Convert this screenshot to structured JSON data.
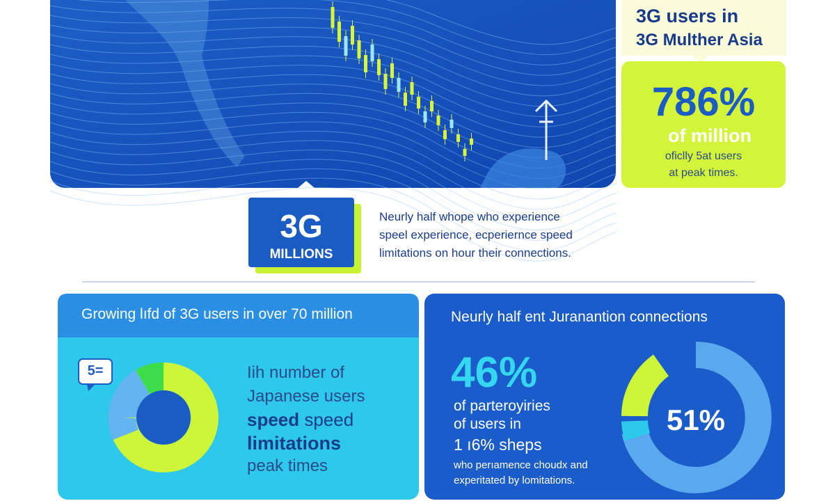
{
  "hero": {
    "callout": {
      "lines": [
        "3G users in",
        "3G Multher Asia"
      ]
    },
    "stat": {
      "value": "786%",
      "unit": "of million",
      "caption": [
        "oficlly 5at users",
        "at peak times."
      ]
    }
  },
  "badge": {
    "big": "3G",
    "small": "MILLIONS"
  },
  "intro": [
    "Neurly half whope who experience",
    "speel experience, ecperiernce speed",
    "limitations on hour their connections."
  ],
  "left_panel": {
    "title": "Growing lıfd of 3G users in over 70 million",
    "icon": "5=",
    "lines": [
      "Iih number of",
      "Japanese users"
    ],
    "bold_word": "speed",
    "after_bold": " speed",
    "bold_line": "limitations",
    "last_line": "peak times"
  },
  "right_panel": {
    "title": "Neurly half ent Juranantion connections",
    "stat": "46%",
    "lines": [
      "of parteroyiries",
      "of users in",
      "1 ı6% sheps"
    ],
    "notes": [
      "who perıamence choudx and",
      "experitated by lomitations."
    ],
    "donut_label": "51%"
  }
}
